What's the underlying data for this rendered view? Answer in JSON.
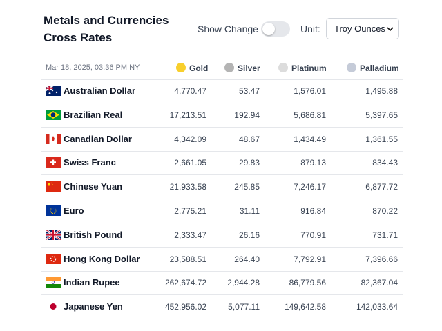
{
  "header": {
    "title": "Metals and Currencies Cross Rates",
    "toggle_label": "Show Change",
    "unit_label": "Unit:",
    "unit_value": "Troy Ounces"
  },
  "table": {
    "timestamp": "Mar 18, 2025, 03:36 PM NY",
    "columns": [
      "Gold",
      "Silver",
      "Platinum",
      "Palladium"
    ],
    "rows": [
      [
        "Australian Dollar",
        "4,770.47",
        "53.47",
        "1,576.01",
        "1,495.88"
      ],
      [
        "Brazilian Real",
        "17,213.51",
        "192.94",
        "5,686.81",
        "5,397.65"
      ],
      [
        "Canadian Dollar",
        "4,342.09",
        "48.67",
        "1,434.49",
        "1,361.55"
      ],
      [
        "Swiss Franc",
        "2,661.05",
        "29.83",
        "879.13",
        "834.43"
      ],
      [
        "Chinese Yuan",
        "21,933.58",
        "245.85",
        "7,246.17",
        "6,877.72"
      ],
      [
        "Euro",
        "2,775.21",
        "31.11",
        "916.84",
        "870.22"
      ],
      [
        "British Pound",
        "2,333.47",
        "26.16",
        "770.91",
        "731.71"
      ],
      [
        "Hong Kong Dollar",
        "23,588.51",
        "264.40",
        "7,792.91",
        "7,396.66"
      ],
      [
        "Indian Rupee",
        "262,674.72",
        "2,944.28",
        "86,779.56",
        "82,367.04"
      ],
      [
        "Japanese Yen",
        "452,956.02",
        "5,077.11",
        "149,642.58",
        "142,033.64"
      ]
    ]
  }
}
